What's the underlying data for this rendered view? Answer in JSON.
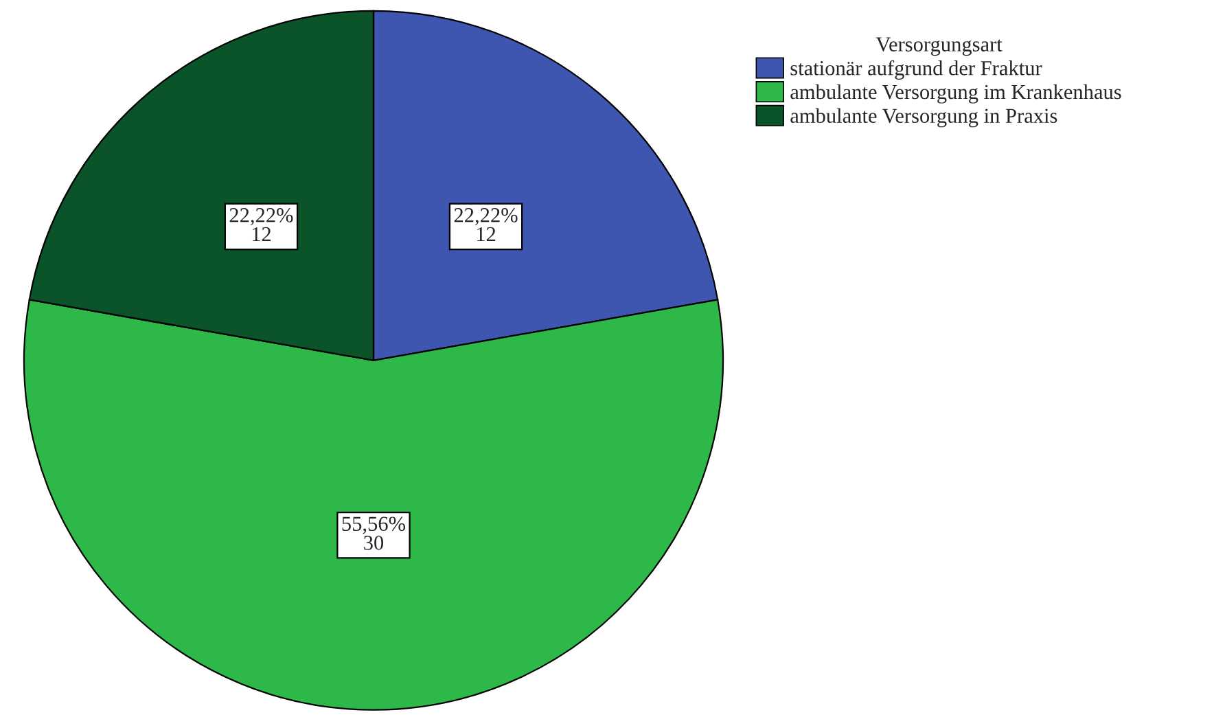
{
  "chart_data": {
    "type": "pie",
    "legend_title": "Versorgungsart",
    "categories": [
      "stationär aufgrund der Fraktur",
      "ambulante Versorgung im Krankenhaus",
      "ambulante Versorgung in Praxis"
    ],
    "values": [
      12,
      30,
      12
    ],
    "colors": [
      "#3f56b0",
      "#2eb84a",
      "#0b5329"
    ],
    "value_labels": [
      "22,22%\n12",
      "55,56%\n30",
      "22,22%\n12"
    ],
    "legend": "top right"
  }
}
